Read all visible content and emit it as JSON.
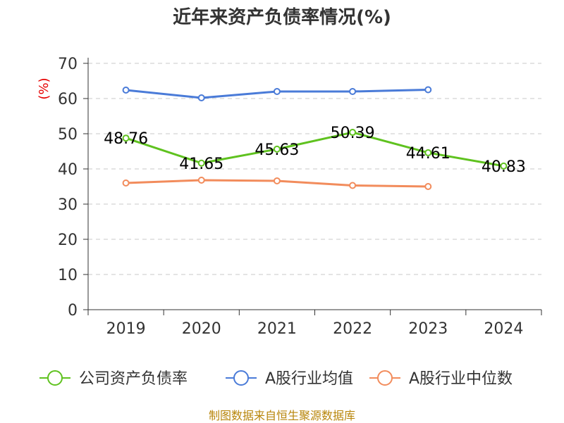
{
  "chart_data": {
    "type": "line",
    "title": "近年来资产负债率情况(%)",
    "ylabel": "(%)",
    "categories": [
      "2019",
      "2020",
      "2021",
      "2022",
      "2023",
      "2024"
    ],
    "ylim": [
      0,
      70
    ],
    "yticks": [
      "0",
      "10",
      "20",
      "30",
      "40",
      "50",
      "60",
      "70"
    ],
    "grid": "horizontal-dashed",
    "legend_position": "bottom",
    "series": [
      {
        "name": "公司资产负债率",
        "color": "#5fc21f",
        "show_labels": true,
        "values": [
          48.76,
          41.65,
          45.63,
          50.39,
          44.61,
          40.83
        ],
        "labels": [
          "48.76",
          "41.65",
          "45.63",
          "50.39",
          "44.61",
          "40.83"
        ]
      },
      {
        "name": "A股行业均值",
        "color": "#4a7bd8",
        "show_labels": false,
        "values": [
          62.4,
          60.2,
          62.0,
          62.0,
          62.5,
          null
        ]
      },
      {
        "name": "A股行业中位数",
        "color": "#f28c5c",
        "show_labels": false,
        "values": [
          36.0,
          36.8,
          36.6,
          35.3,
          35.0,
          null
        ]
      }
    ]
  },
  "source": "制图数据来自恒生聚源数据库"
}
